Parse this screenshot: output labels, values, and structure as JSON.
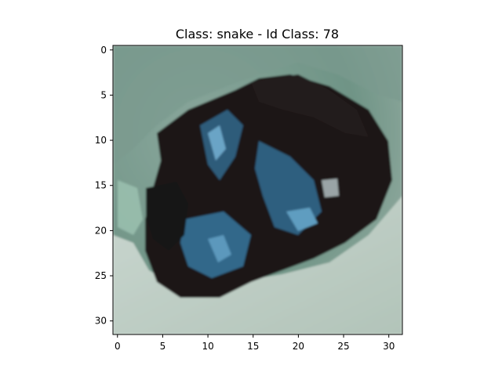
{
  "figure": {
    "title": "Class: snake - Id Class: 78"
  },
  "image": {
    "subject": "snake",
    "class_id": 78,
    "resolution": [
      32,
      32
    ]
  },
  "axes": {
    "x_ticks": [
      "0",
      "5",
      "10",
      "15",
      "20",
      "25",
      "30"
    ],
    "y_ticks": [
      "0",
      "5",
      "10",
      "15",
      "20",
      "25",
      "30"
    ]
  },
  "colors": {
    "background": "#ffffff",
    "axis": "#000000",
    "image_light": "#b5c7be",
    "image_green": "#5f8a78",
    "image_dark": "#1a1515",
    "image_blue": "#3f7aa0"
  }
}
